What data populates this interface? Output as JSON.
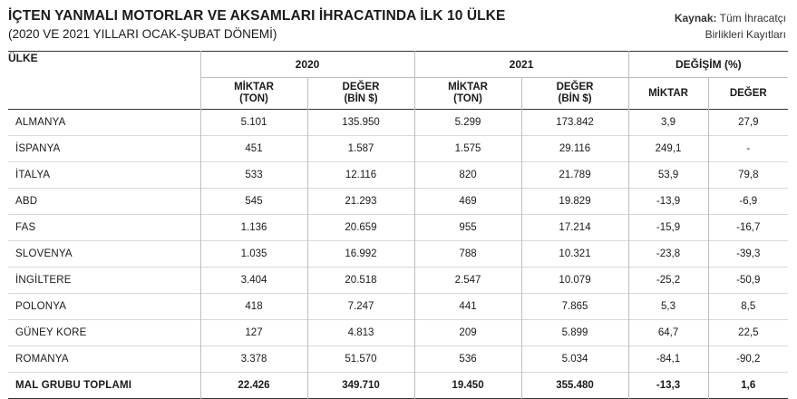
{
  "header": {
    "title": "İÇTEN YANMALI MOTORLAR VE AKSAMLARI İHRACATINDA İLK 10 ÜLKE",
    "subtitle": "(2020 VE 2021 YILLARI OCAK-ŞUBAT DÖNEMİ)",
    "source_label": "Kaynak:",
    "source_text_line1": "Tüm İhracatçı",
    "source_text_line2": "Birlikleri Kayıtları"
  },
  "table": {
    "country_header": "ÜLKE",
    "groups": [
      "2020",
      "2021",
      "DEĞİŞİM (%)"
    ],
    "sub_headers": {
      "miktar_ton_1": "MİKTAR",
      "miktar_ton_2": "(TON)",
      "deger_bin_1": "DEĞER",
      "deger_bin_2": "(BİN $)",
      "miktar": "MİKTAR",
      "deger": "DEĞER"
    },
    "rows": [
      [
        "ALMANYA",
        "5.101",
        "135.950",
        "5.299",
        "173.842",
        "3,9",
        "27,9"
      ],
      [
        "İSPANYA",
        "451",
        "1.587",
        "1.575",
        "29.116",
        "249,1",
        "-"
      ],
      [
        "İTALYA",
        "533",
        "12.116",
        "820",
        "21.789",
        "53,9",
        "79,8"
      ],
      [
        "ABD",
        "545",
        "21.293",
        "469",
        "19.829",
        "-13,9",
        "-6,9"
      ],
      [
        "FAS",
        "1.136",
        "20.659",
        "955",
        "17.214",
        "-15,9",
        "-16,7"
      ],
      [
        "SLOVENYA",
        "1.035",
        "16.992",
        "788",
        "10.321",
        "-23,8",
        "-39,3"
      ],
      [
        "İNGİLTERE",
        "3.404",
        "20.518",
        "2.547",
        "10.079",
        "-25,2",
        "-50,9"
      ],
      [
        "POLONYA",
        "418",
        "7.247",
        "441",
        "7.865",
        "5,3",
        "8,5"
      ],
      [
        "GÜNEY KORE",
        "127",
        "4.813",
        "209",
        "5.899",
        "64,7",
        "22,5"
      ],
      [
        "ROMANYA",
        "3.378",
        "51.570",
        "536",
        "5.034",
        "-84,1",
        "-90,2"
      ]
    ],
    "total": [
      "MAL GRUBU TOPLAMI",
      "22.426",
      "349.710",
      "19.450",
      "355.480",
      "-13,3",
      "1,6"
    ]
  }
}
